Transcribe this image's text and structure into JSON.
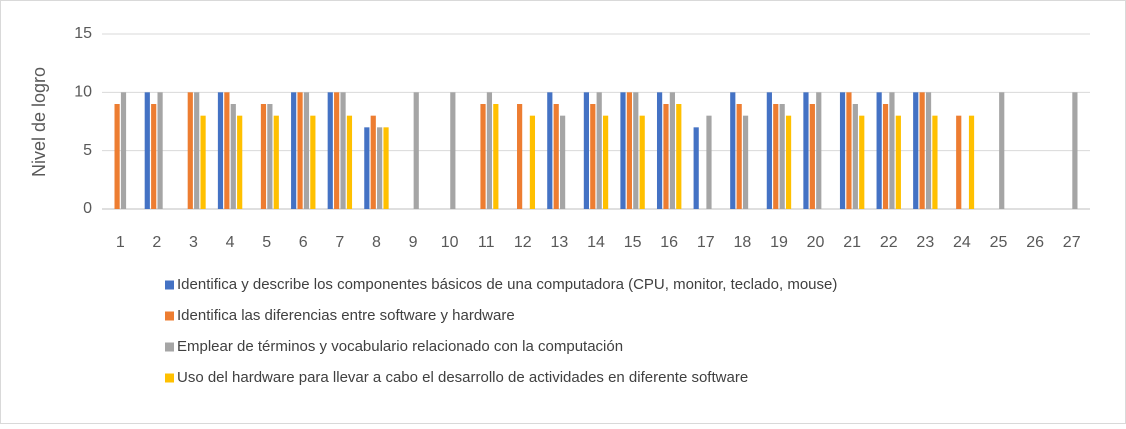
{
  "chart_data": {
    "type": "bar",
    "y_label": "Nivel de logro",
    "categories": [
      "1",
      "2",
      "3",
      "4",
      "5",
      "6",
      "7",
      "8",
      "9",
      "10",
      "11",
      "12",
      "13",
      "14",
      "15",
      "16",
      "17",
      "18",
      "19",
      "20",
      "21",
      "22",
      "23",
      "24",
      "25",
      "26",
      "27"
    ],
    "series": [
      {
        "name": "Identifica y describe los componentes básicos de una computadora (CPU, monitor, teclado, mouse)",
        "color": "#4472c4",
        "values": [
          null,
          10,
          null,
          10,
          null,
          10,
          10,
          7,
          null,
          null,
          null,
          null,
          10,
          10,
          10,
          10,
          7,
          10,
          10,
          10,
          10,
          10,
          10,
          null,
          null,
          null,
          null
        ]
      },
      {
        "name": "Identifica las diferencias entre software y hardware",
        "color": "#ed7d31",
        "values": [
          9,
          9,
          10,
          10,
          9,
          10,
          10,
          8,
          null,
          null,
          9,
          9,
          9,
          9,
          10,
          9,
          null,
          9,
          9,
          9,
          10,
          9,
          10,
          8,
          null,
          null,
          null
        ]
      },
      {
        "name": "Emplear de términos y vocabulario relacionado con la computación",
        "color": "#a5a5a5",
        "values": [
          10,
          10,
          10,
          9,
          9,
          10,
          10,
          7,
          10,
          10,
          10,
          null,
          8,
          10,
          10,
          10,
          8,
          8,
          9,
          10,
          9,
          10,
          10,
          null,
          10,
          null,
          10
        ]
      },
      {
        "name": "Uso del hardware para llevar a cabo el desarrollo de actividades en diferente software",
        "color": "#ffc000",
        "values": [
          null,
          null,
          8,
          8,
          8,
          8,
          8,
          7,
          null,
          null,
          9,
          8,
          null,
          8,
          8,
          9,
          null,
          null,
          8,
          null,
          8,
          8,
          8,
          8,
          null,
          null,
          null
        ]
      }
    ],
    "ylim": [
      0,
      15
    ],
    "yticks": [
      0,
      5,
      10,
      15
    ],
    "grid": true
  }
}
